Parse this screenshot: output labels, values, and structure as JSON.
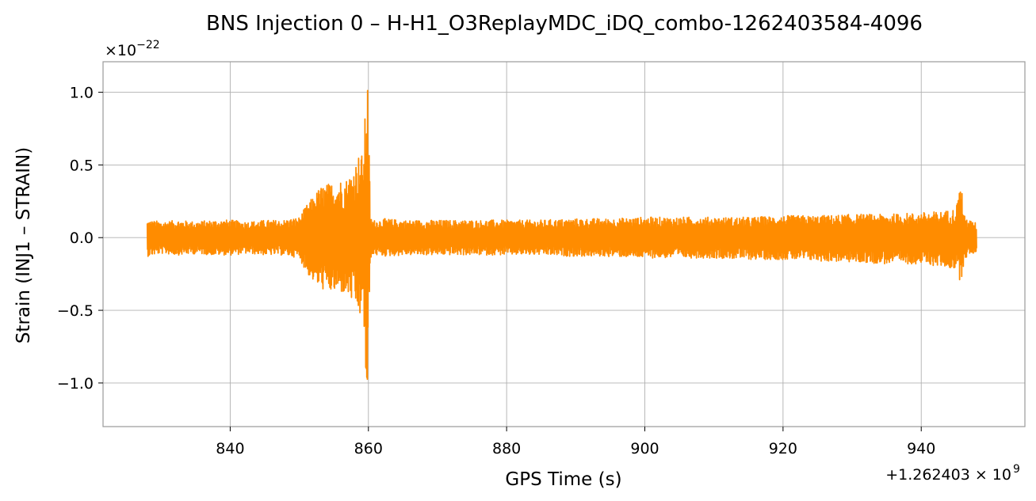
{
  "chart_data": {
    "type": "line",
    "title": "BNS Injection 0 – H-H1_O3ReplayMDC_iDQ_combo-1262403584-4096",
    "xlabel": "GPS Time (s)",
    "ylabel": "Strain (INJ1 – STRAIN)",
    "x_offset_label": "+1.262403 × 10",
    "x_offset_exponent": "9",
    "y_scale_label": "×10",
    "y_scale_exponent": "−22",
    "xlim": [
      821.6,
      955.0
    ],
    "ylim": [
      -1.3,
      1.21
    ],
    "x_ticks": [
      840,
      860,
      880,
      900,
      920,
      940
    ],
    "x_tick_labels": [
      "840",
      "860",
      "880",
      "900",
      "920",
      "940"
    ],
    "y_ticks": [
      -1.0,
      -0.5,
      0.0,
      0.5,
      1.0
    ],
    "y_tick_labels": [
      "−1.0",
      "−0.5",
      "0.0",
      "0.5",
      "1.0"
    ],
    "grid": true,
    "series": [
      {
        "color": "#ff8c00",
        "x": [
          828.0,
          830.0,
          832.5,
          835.0,
          837.5,
          840.0,
          842.5,
          845.0,
          847.5,
          850.0,
          851.0,
          852.0,
          853.0,
          854.0,
          855.0,
          856.0,
          857.0,
          858.0,
          858.8,
          859.3,
          859.7,
          859.9,
          860.0,
          860.3,
          860.8,
          862.5,
          865.0,
          870.0,
          875.0,
          880.0,
          885.0,
          890.0,
          895.0,
          900.0,
          905.0,
          910.0,
          915.0,
          920.0,
          925.0,
          930.0,
          935.0,
          940.0,
          943.0,
          945.0,
          945.8,
          946.2,
          947.0,
          948.0
        ],
        "upper": [
          0.12,
          0.11,
          0.12,
          0.11,
          0.12,
          0.12,
          0.11,
          0.12,
          0.12,
          0.14,
          0.22,
          0.28,
          0.35,
          0.37,
          0.38,
          0.4,
          0.41,
          0.5,
          0.6,
          0.55,
          1.08,
          1.1,
          0.85,
          0.14,
          0.12,
          0.13,
          0.12,
          0.12,
          0.12,
          0.12,
          0.12,
          0.13,
          0.13,
          0.14,
          0.14,
          0.14,
          0.14,
          0.15,
          0.15,
          0.16,
          0.16,
          0.17,
          0.18,
          0.2,
          0.4,
          0.15,
          0.12,
          0.1
        ],
        "lower": [
          -0.13,
          -0.11,
          -0.12,
          -0.11,
          -0.12,
          -0.12,
          -0.11,
          -0.12,
          -0.12,
          -0.14,
          -0.24,
          -0.3,
          -0.35,
          -0.37,
          -0.38,
          -0.38,
          -0.4,
          -0.47,
          -0.55,
          -0.5,
          -1.18,
          -1.2,
          -0.7,
          -0.14,
          -0.12,
          -0.13,
          -0.12,
          -0.12,
          -0.12,
          -0.12,
          -0.12,
          -0.13,
          -0.13,
          -0.14,
          -0.14,
          -0.14,
          -0.15,
          -0.15,
          -0.16,
          -0.17,
          -0.18,
          -0.18,
          -0.2,
          -0.22,
          -0.32,
          -0.15,
          -0.12,
          -0.1
        ]
      }
    ]
  }
}
